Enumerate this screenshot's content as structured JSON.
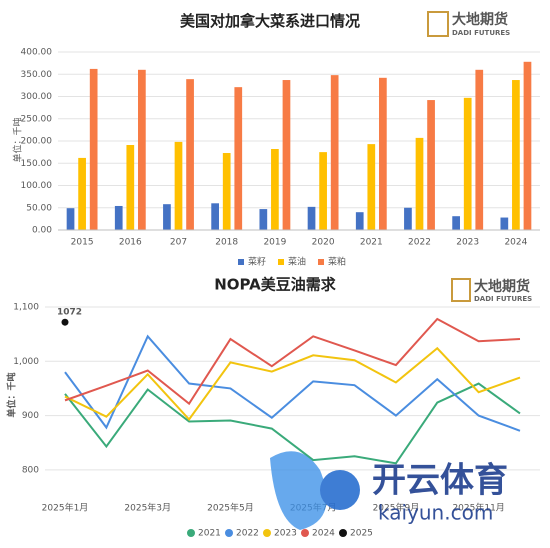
{
  "logo": {
    "cn": "大地期货",
    "en": "DADI FUTURES"
  },
  "watermark": {
    "cn": "开云体育",
    "en": "kaiyun.com"
  },
  "chart_data": [
    {
      "type": "bar",
      "title": "美国对加拿大菜系进口情况",
      "y_label": "单位：千吨",
      "categories": [
        "2015",
        "2016",
        "207",
        "2018",
        "2019",
        "2020",
        "2021",
        "2022",
        "2023",
        "2024"
      ],
      "series": [
        {
          "name": "菜籽",
          "color": "#4472c4",
          "values": [
            49,
            54,
            58,
            60,
            47,
            52,
            40,
            50,
            31,
            28
          ]
        },
        {
          "name": "菜油",
          "color": "#ffc000",
          "values": [
            162,
            191,
            198,
            173,
            182,
            175,
            193,
            207,
            297,
            337
          ]
        },
        {
          "name": "菜粕",
          "color": "#f77b45",
          "values": [
            362,
            360,
            339,
            321,
            337,
            348,
            342,
            292,
            360,
            378
          ]
        }
      ],
      "ylim": [
        0,
        400
      ],
      "yticks": [
        {
          "value": 0,
          "label": "0.00"
        },
        {
          "value": 50,
          "label": "50.00"
        },
        {
          "value": 100,
          "label": "100.00"
        },
        {
          "value": 150,
          "label": "150.00"
        },
        {
          "value": 200,
          "label": "200.00"
        },
        {
          "value": 250,
          "label": "250.00"
        },
        {
          "value": 300,
          "label": "300.00"
        },
        {
          "value": 350,
          "label": "350.00"
        },
        {
          "value": 400,
          "label": "400.00"
        }
      ],
      "grid": true
    },
    {
      "type": "line",
      "title": "NOPA美豆油需求",
      "y_label": "单位：千吨",
      "categories": [
        "2025年1月",
        null,
        "2025年3月",
        null,
        "2025年5月",
        null,
        "2025年7月",
        null,
        "2025年9月",
        null,
        "2025年11月",
        null
      ],
      "series": [
        {
          "name": "2021",
          "color": "#3aaa7a",
          "values": [
            940,
            843,
            948,
            889,
            891,
            876,
            818,
            825,
            812,
            924,
            959,
            904
          ]
        },
        {
          "name": "2022",
          "color": "#4a8de0",
          "values": [
            980,
            878,
            1046,
            959,
            950,
            896,
            963,
            956,
            900,
            967,
            900,
            872
          ]
        },
        {
          "name": "2023",
          "color": "#f2c40f",
          "values": [
            935,
            898,
            976,
            893,
            998,
            981,
            1011,
            1002,
            961,
            1024,
            943,
            970
          ]
        },
        {
          "name": "2024",
          "color": "#e0584f",
          "values": [
            928,
            955,
            983,
            922,
            1041,
            991,
            1046,
            1020,
            993,
            1078,
            1037,
            1041
          ]
        },
        {
          "name": "2025",
          "color": "#111111",
          "values": [
            1072,
            null,
            null,
            null,
            null,
            null,
            null,
            null,
            null,
            null,
            null,
            null
          ]
        }
      ],
      "ylim": [
        750,
        1100
      ],
      "yticks": [
        800,
        900,
        {
          "value": 1000,
          "label": "1,000"
        },
        {
          "value": 1100,
          "label": "1,100"
        }
      ],
      "grid": true
    }
  ]
}
